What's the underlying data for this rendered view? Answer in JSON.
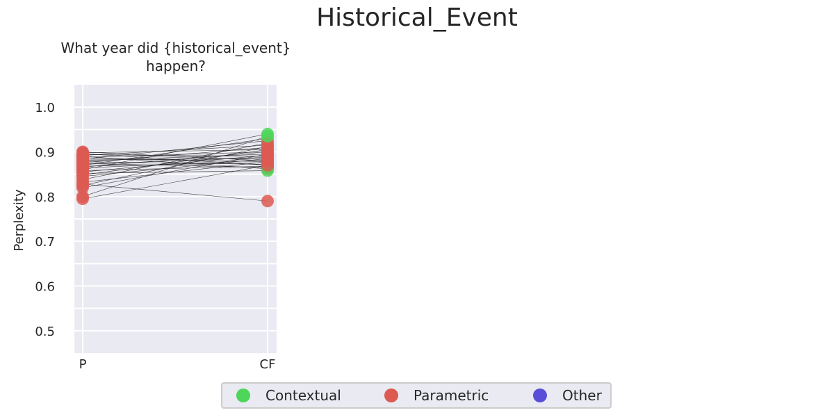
{
  "figure": {
    "title": "Historical_Event"
  },
  "chart_data": {
    "type": "scatter",
    "title": "What year did {historical_event} happen?",
    "xlabel": "",
    "ylabel": "Perplexity",
    "categories": [
      "P",
      "CF"
    ],
    "ylim": [
      0.45,
      1.05
    ],
    "yticks": [
      "0.5",
      "0.6",
      "0.7",
      "0.8",
      "0.9",
      "1.0"
    ],
    "grid": true,
    "legend_placement": "bottom-center",
    "colors": {
      "Contextual": "#4dd65a",
      "Parametric": "#dc5a52",
      "Other": "#5a4ed9",
      "line": "#1a1a1a",
      "plot_bg": "#eaeaf2"
    },
    "legend": [
      "Contextual",
      "Parametric",
      "Other"
    ],
    "pairs": [
      {
        "p": 0.9,
        "cf": 0.88,
        "cf_class": "Parametric"
      },
      {
        "p": 0.898,
        "cf": 0.905,
        "cf_class": "Parametric"
      },
      {
        "p": 0.896,
        "cf": 0.87,
        "cf_class": "Parametric"
      },
      {
        "p": 0.894,
        "cf": 0.89,
        "cf_class": "Parametric"
      },
      {
        "p": 0.892,
        "cf": 0.915,
        "cf_class": "Parametric"
      },
      {
        "p": 0.89,
        "cf": 0.862,
        "cf_class": "Parametric"
      },
      {
        "p": 0.888,
        "cf": 0.9,
        "cf_class": "Parametric"
      },
      {
        "p": 0.886,
        "cf": 0.878,
        "cf_class": "Parametric"
      },
      {
        "p": 0.884,
        "cf": 0.925,
        "cf_class": "Contextual"
      },
      {
        "p": 0.882,
        "cf": 0.885,
        "cf_class": "Parametric"
      },
      {
        "p": 0.88,
        "cf": 0.895,
        "cf_class": "Parametric"
      },
      {
        "p": 0.878,
        "cf": 0.872,
        "cf_class": "Parametric"
      },
      {
        "p": 0.876,
        "cf": 0.91,
        "cf_class": "Contextual"
      },
      {
        "p": 0.874,
        "cf": 0.865,
        "cf_class": "Parametric"
      },
      {
        "p": 0.872,
        "cf": 0.888,
        "cf_class": "Parametric"
      },
      {
        "p": 0.87,
        "cf": 0.93,
        "cf_class": "Contextual"
      },
      {
        "p": 0.868,
        "cf": 0.876,
        "cf_class": "Parametric"
      },
      {
        "p": 0.866,
        "cf": 0.9,
        "cf_class": "Parametric"
      },
      {
        "p": 0.864,
        "cf": 0.882,
        "cf_class": "Parametric"
      },
      {
        "p": 0.86,
        "cf": 0.94,
        "cf_class": "Contextual"
      },
      {
        "p": 0.858,
        "cf": 0.868,
        "cf_class": "Parametric"
      },
      {
        "p": 0.855,
        "cf": 0.893,
        "cf_class": "Parametric"
      },
      {
        "p": 0.852,
        "cf": 0.858,
        "cf_class": "Contextual"
      },
      {
        "p": 0.848,
        "cf": 0.905,
        "cf_class": "Parametric"
      },
      {
        "p": 0.845,
        "cf": 0.885,
        "cf_class": "Parametric"
      },
      {
        "p": 0.838,
        "cf": 0.92,
        "cf_class": "Parametric"
      },
      {
        "p": 0.832,
        "cf": 0.878,
        "cf_class": "Parametric"
      },
      {
        "p": 0.828,
        "cf": 0.79,
        "cf_class": "Parametric"
      },
      {
        "p": 0.825,
        "cf": 0.912,
        "cf_class": "Parametric"
      },
      {
        "p": 0.82,
        "cf": 0.895,
        "cf_class": "Parametric"
      },
      {
        "p": 0.8,
        "cf": 0.935,
        "cf_class": "Contextual"
      },
      {
        "p": 0.795,
        "cf": 0.87,
        "cf_class": "Parametric"
      }
    ]
  }
}
